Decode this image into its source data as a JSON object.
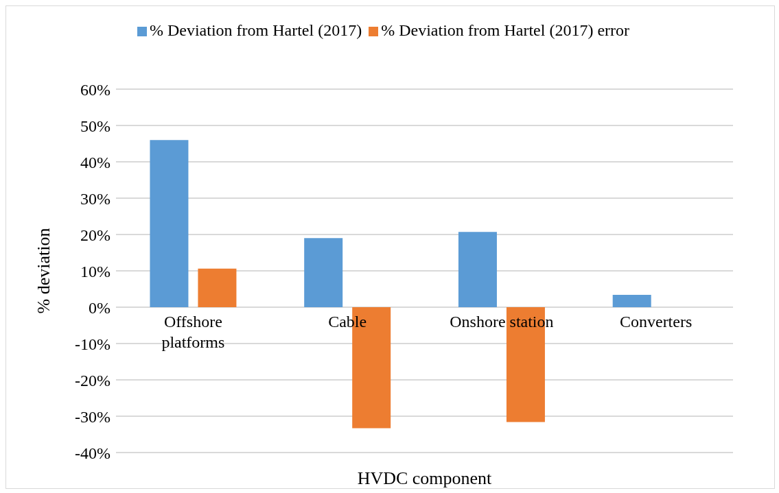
{
  "chart_data": {
    "type": "bar",
    "xlabel": "HVDC component",
    "ylabel": "% deviation",
    "categories": [
      "Offshore platforms",
      "Cable",
      "Onshore station",
      "Converters"
    ],
    "series": [
      {
        "name": "% Deviation from Hartel (2017)",
        "color": "#5b9bd5",
        "values": [
          46,
          19,
          20.7,
          3.4
        ]
      },
      {
        "name": "% Deviation from Hartel (2017) error",
        "color": "#ed7d31",
        "values": [
          10.6,
          -33.3,
          -31.6,
          null
        ]
      }
    ],
    "ylim": [
      -40,
      60
    ],
    "yticks": [
      {
        "value": -40,
        "label": "-40%"
      },
      {
        "value": -30,
        "label": "-30%"
      },
      {
        "value": -20,
        "label": "-20%"
      },
      {
        "value": -10,
        "label": "-10%"
      },
      {
        "value": 0,
        "label": "0%"
      },
      {
        "value": 10,
        "label": "10%"
      },
      {
        "value": 20,
        "label": "20%"
      },
      {
        "value": 30,
        "label": "30%"
      },
      {
        "value": 40,
        "label": "40%"
      },
      {
        "value": 50,
        "label": "50%"
      },
      {
        "value": 60,
        "label": "60%"
      }
    ],
    "grid": "y",
    "legend": "top"
  }
}
